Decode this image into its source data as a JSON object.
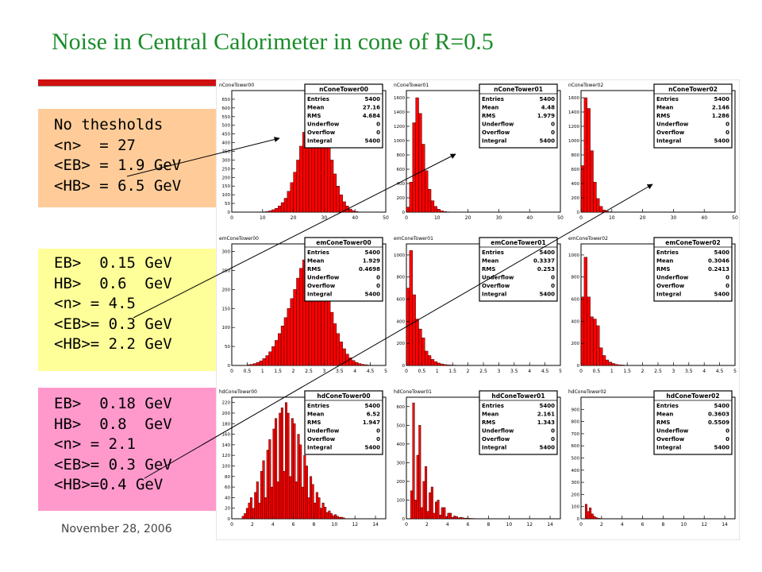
{
  "slide": {
    "title": "Noise in Central Calorimeter in cone of R=0.5",
    "date": "November 28, 2006",
    "accent_color": "#d01010",
    "title_color": "#1a8c2a"
  },
  "boxes": [
    {
      "color": "#ffcc99",
      "lines": [
        "No thesholds",
        "<n>  = 27",
        "<EB> = 1.9 GeV",
        "<HB> = 6.5 GeV"
      ]
    },
    {
      "color": "#ffff99",
      "lines": [
        "EB>  0.15 GeV",
        "HB>  0.6  GeV",
        "<n> = 4.5",
        "<EB>= 0.3 GeV",
        "<HB>= 2.2 GeV"
      ]
    },
    {
      "color": "#ff99cc",
      "lines": [
        "EB>  0.18 GeV",
        "HB>  0.8  GeV",
        "<n> = 2.1",
        "<EB>= 0.3 GeV",
        "<HB>=0.4 GeV"
      ]
    }
  ],
  "stat_labels": [
    "Entries",
    "Mean",
    "RMS",
    "Underflow",
    "Overflow",
    "Integral"
  ],
  "chart_data": [
    {
      "type": "bar",
      "name": "nConeTower00",
      "title": "nConeTower00",
      "stats": [
        "5400",
        "27.16",
        "4.684",
        "0",
        "0",
        "5400"
      ],
      "xlim": [
        0,
        50
      ],
      "ylim": [
        0,
        700
      ],
      "xticks": [
        0,
        10,
        20,
        30,
        40,
        50
      ],
      "yticks": [
        0,
        50,
        100,
        150,
        200,
        250,
        300,
        350,
        400,
        450,
        500,
        550,
        600,
        650
      ],
      "bin_edges_start": 10,
      "bin_width": 1,
      "values": [
        2,
        4,
        8,
        14,
        22,
        35,
        55,
        80,
        120,
        170,
        230,
        300,
        380,
        460,
        520,
        590,
        640,
        650,
        620,
        560,
        470,
        380,
        300,
        220,
        150,
        100,
        60,
        35,
        18,
        8,
        4
      ]
    },
    {
      "type": "bar",
      "name": "nConeTower01",
      "title": "nConeTower01",
      "stats": [
        "5400",
        "4.48",
        "1.979",
        "0",
        "0",
        "5400"
      ],
      "xlim": [
        0,
        50
      ],
      "ylim": [
        0,
        1700
      ],
      "xticks": [
        0,
        10,
        20,
        30,
        40,
        50
      ],
      "yticks": [
        0,
        200,
        400,
        600,
        800,
        1000,
        1200,
        1400,
        1600
      ],
      "bin_edges_start": 0,
      "bin_width": 1,
      "values": [
        70,
        420,
        1250,
        1600,
        1380,
        950,
        580,
        320,
        160,
        80,
        40,
        18,
        8,
        4,
        2
      ]
    },
    {
      "type": "bar",
      "name": "nConeTower02",
      "title": "nConeTower02",
      "stats": [
        "5400",
        "2.146",
        "1.286",
        "0",
        "0",
        "5400"
      ],
      "xlim": [
        0,
        50
      ],
      "ylim": [
        0,
        1700
      ],
      "xticks": [
        0,
        10,
        20,
        30,
        40,
        50
      ],
      "yticks": [
        0,
        200,
        400,
        600,
        800,
        1000,
        1200,
        1400,
        1600
      ],
      "bin_edges_start": 0,
      "bin_width": 1,
      "values": [
        650,
        1600,
        1450,
        860,
        420,
        190,
        80,
        30,
        12,
        5,
        2
      ]
    },
    {
      "type": "bar",
      "name": "emConeTower00",
      "title": "emConeTower00",
      "stats": [
        "5400",
        "1.929",
        "0.4698",
        "0",
        "0",
        "5400"
      ],
      "xlim": [
        0,
        5
      ],
      "ylim": [
        0,
        320
      ],
      "xticks": [
        0,
        0.5,
        1,
        1.5,
        2,
        2.5,
        3,
        3.5,
        4,
        4.5,
        5
      ],
      "ytick_labels": [
        "0",
        "50",
        "100",
        "150",
        "200",
        "250",
        "300"
      ],
      "yticks": [
        0,
        50,
        100,
        150,
        200,
        250,
        300
      ],
      "bin_edges_start": 0.5,
      "bin_width": 0.1,
      "values": [
        2,
        3,
        5,
        8,
        12,
        18,
        26,
        36,
        50,
        66,
        84,
        104,
        126,
        150,
        176,
        200,
        230,
        256,
        278,
        300,
        312,
        306,
        290,
        266,
        238,
        206,
        172,
        140,
        110,
        84,
        62,
        44,
        30,
        20,
        13,
        8,
        5,
        3,
        2,
        1
      ]
    },
    {
      "type": "bar",
      "name": "emConeTower01",
      "title": "emConeTower01",
      "stats": [
        "5400",
        "0.3337",
        "0.253",
        "0",
        "0",
        "5400"
      ],
      "xlim": [
        0,
        5
      ],
      "ylim": [
        0,
        1100
      ],
      "xticks": [
        0,
        0.5,
        1,
        1.5,
        2,
        2.5,
        3,
        3.5,
        4,
        4.5,
        5
      ],
      "yticks": [
        0,
        200,
        400,
        600,
        800,
        1000
      ],
      "bin_edges_start": 0,
      "bin_width": 0.1,
      "values": [
        700,
        1040,
        640,
        420,
        330,
        250,
        130,
        90,
        55,
        35,
        22,
        14,
        9,
        6,
        4,
        3,
        2,
        1,
        1,
        1
      ]
    },
    {
      "type": "bar",
      "name": "emConeTower02",
      "title": "emConeTower02",
      "stats": [
        "5400",
        "0.3046",
        "0.2413",
        "0",
        "0",
        "5400"
      ],
      "xlim": [
        0,
        5
      ],
      "ylim": [
        0,
        1100
      ],
      "xticks": [
        0,
        0.5,
        1,
        1.5,
        2,
        2.5,
        3,
        3.5,
        4,
        4.5,
        5
      ],
      "yticks": [
        0,
        200,
        400,
        600,
        800,
        1000
      ],
      "bin_edges_start": 0,
      "bin_width": 0.1,
      "values": [
        620,
        980,
        620,
        440,
        420,
        360,
        160,
        90,
        50,
        30,
        18,
        10,
        6,
        4,
        2,
        1
      ]
    },
    {
      "type": "bar",
      "name": "hdConeTower00",
      "title": "hdConeTower00",
      "stats": [
        "5400",
        "6.52",
        "1.947",
        "0",
        "0",
        "5400"
      ],
      "xlim": [
        0,
        15
      ],
      "ylim": [
        0,
        230
      ],
      "xticks": [
        0,
        2,
        4,
        6,
        8,
        10,
        12,
        14
      ],
      "yticks": [
        0,
        20,
        40,
        60,
        80,
        100,
        120,
        140,
        160,
        180,
        200,
        220
      ],
      "bin_edges_start": 1,
      "bin_width": 0.2,
      "values": [
        5,
        10,
        20,
        30,
        40,
        20,
        50,
        70,
        30,
        90,
        110,
        40,
        130,
        150,
        60,
        170,
        190,
        70,
        200,
        210,
        90,
        220,
        200,
        80,
        190,
        180,
        70,
        160,
        140,
        60,
        120,
        100,
        40,
        80,
        65,
        30,
        50,
        40,
        20,
        30,
        22,
        12,
        15,
        10,
        6,
        8,
        5,
        3,
        3,
        2
      ]
    },
    {
      "type": "bar",
      "name": "hdConeTower01",
      "title": "hdConeTower01",
      "stats": [
        "5400",
        "2.161",
        "1.343",
        "0",
        "0",
        "5400"
      ],
      "xlim": [
        0,
        15
      ],
      "ylim": [
        0,
        650
      ],
      "xticks": [
        0,
        2,
        4,
        6,
        8,
        10,
        12,
        14
      ],
      "yticks": [
        0,
        100,
        200,
        300,
        400,
        500,
        600
      ],
      "bin_edges_start": 0.4,
      "bin_width": 0.2,
      "values": [
        150,
        620,
        100,
        340,
        500,
        60,
        200,
        280,
        40,
        140,
        170,
        30,
        90,
        100,
        20,
        60,
        60,
        12,
        30,
        30,
        8,
        15,
        12,
        5,
        8,
        6,
        3,
        4,
        3,
        2,
        2,
        1,
        1,
        1
      ]
    },
    {
      "type": "bar",
      "name": "hdConeTower02",
      "title": "hdConeTower02",
      "stats": [
        "5400",
        "0.3603",
        "0.5509",
        "0",
        "0",
        "5400"
      ],
      "xlim": [
        0,
        15
      ],
      "ylim": [
        0,
        1000
      ],
      "xticks": [
        0,
        2,
        4,
        6,
        8,
        10,
        12,
        14
      ],
      "yticks": [
        0,
        100,
        200,
        300,
        400,
        500,
        600,
        700,
        800,
        900
      ],
      "bin_edges_start": 0.4,
      "bin_width": 0.2,
      "values": [
        120,
        60,
        90,
        40,
        20,
        10,
        5,
        3,
        2,
        1
      ]
    }
  ]
}
